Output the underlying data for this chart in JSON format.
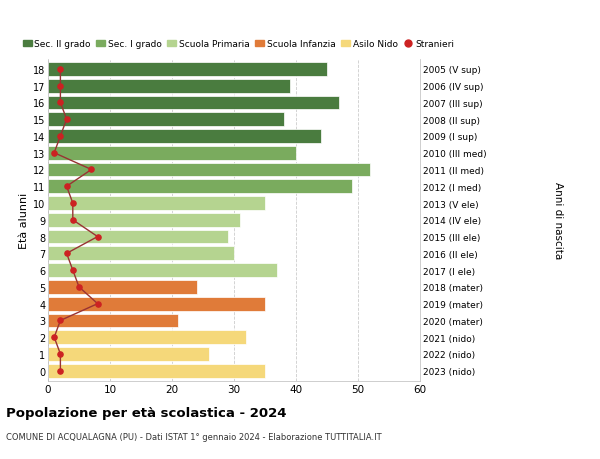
{
  "ages": [
    18,
    17,
    16,
    15,
    14,
    13,
    12,
    11,
    10,
    9,
    8,
    7,
    6,
    5,
    4,
    3,
    2,
    1,
    0
  ],
  "right_labels": [
    "2005 (V sup)",
    "2006 (IV sup)",
    "2007 (III sup)",
    "2008 (II sup)",
    "2009 (I sup)",
    "2010 (III med)",
    "2011 (II med)",
    "2012 (I med)",
    "2013 (V ele)",
    "2014 (IV ele)",
    "2015 (III ele)",
    "2016 (II ele)",
    "2017 (I ele)",
    "2018 (mater)",
    "2019 (mater)",
    "2020 (mater)",
    "2021 (nido)",
    "2022 (nido)",
    "2023 (nido)"
  ],
  "bar_values": [
    45,
    39,
    47,
    38,
    44,
    40,
    52,
    49,
    35,
    31,
    29,
    30,
    37,
    24,
    35,
    21,
    32,
    26,
    35
  ],
  "stranieri_values": [
    2,
    2,
    2,
    3,
    2,
    1,
    7,
    3,
    4,
    4,
    8,
    3,
    4,
    5,
    8,
    2,
    1,
    2,
    2
  ],
  "bar_colors": [
    "#4a7c3f",
    "#4a7c3f",
    "#4a7c3f",
    "#4a7c3f",
    "#4a7c3f",
    "#7aab5e",
    "#7aab5e",
    "#7aab5e",
    "#b5d490",
    "#b5d490",
    "#b5d490",
    "#b5d490",
    "#b5d490",
    "#e07b39",
    "#e07b39",
    "#e07b39",
    "#f5d87a",
    "#f5d87a",
    "#f5d87a"
  ],
  "legend_labels": [
    "Sec. II grado",
    "Sec. I grado",
    "Scuola Primaria",
    "Scuola Infanzia",
    "Asilo Nido",
    "Stranieri"
  ],
  "legend_colors": [
    "#4a7c3f",
    "#7aab5e",
    "#b5d490",
    "#e07b39",
    "#f5d87a",
    "#cc2222"
  ],
  "title": "Popolazione per età scolastica - 2024",
  "subtitle": "COMUNE DI ACQUALAGNA (PU) - Dati ISTAT 1° gennaio 2024 - Elaborazione TUTTITALIA.IT",
  "ylabel_left": "Età alunni",
  "ylabel_right": "Anni di nascita",
  "xlim": [
    0,
    60
  ],
  "background_color": "#ffffff",
  "grid_color": "#cccccc",
  "bar_height": 0.82,
  "stranieri_color": "#cc2222",
  "line_color": "#993333"
}
